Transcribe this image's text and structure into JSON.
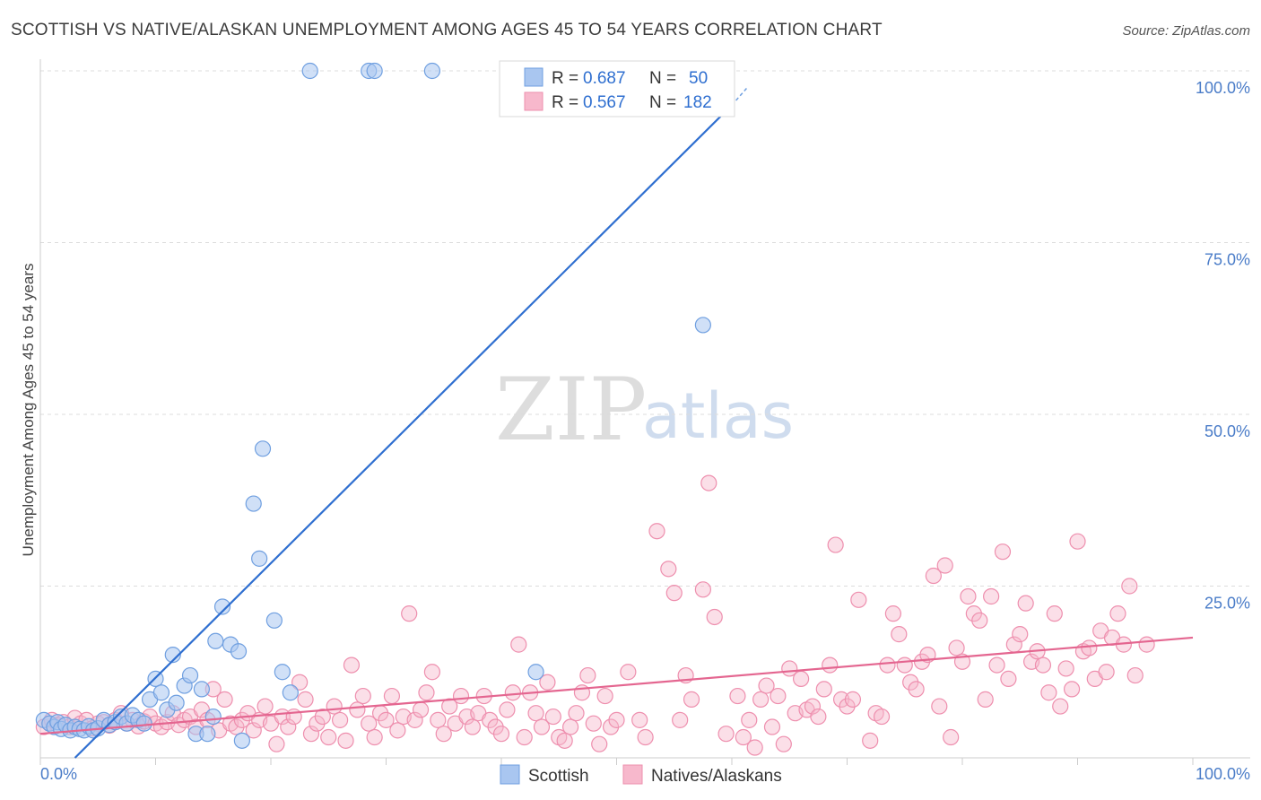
{
  "title": "SCOTTISH VS NATIVE/ALASKAN UNEMPLOYMENT AMONG AGES 45 TO 54 YEARS CORRELATION CHART",
  "source": "Source: ZipAtlas.com",
  "watermark": {
    "zip": "ZIP",
    "atlas": "atlas"
  },
  "colors": {
    "scottish": "#a9c6f0",
    "scottish_stroke": "#6f9fe0",
    "scottish_line": "#2f6fd0",
    "natives": "#f7b8cc",
    "natives_stroke": "#ee8fae",
    "natives_line": "#e46690",
    "grid": "#dcdcdc",
    "axis_text": "#4a7cc8"
  },
  "legend_top": {
    "rows": [
      {
        "r_label": "R = ",
        "r_value": "0.687",
        "n_label": "N = ",
        "n_value": "50"
      },
      {
        "r_label": "R = ",
        "r_value": "0.567",
        "n_label": "N = ",
        "n_value": "182"
      }
    ]
  },
  "legend_bottom": {
    "items": [
      "Scottish",
      "Natives/Alaskans"
    ]
  },
  "chart_data": {
    "type": "scatter",
    "xlabel": "",
    "ylabel": "Unemployment Among Ages 45 to 54 years",
    "xlim": [
      0,
      100
    ],
    "ylim": [
      0,
      100
    ],
    "x_tick_labels": [
      "0.0%",
      "100.0%"
    ],
    "y_ticks": [
      25,
      50,
      75,
      100
    ],
    "y_tick_labels": [
      "25.0%",
      "50.0%",
      "75.0%",
      "100.0%"
    ],
    "grid": true,
    "legend_position": "top-center",
    "series": [
      {
        "name": "Scottish",
        "r": 0.687,
        "n": 50,
        "trend": {
          "x0": 3,
          "y0": 0,
          "x1": 60,
          "y1": 95
        },
        "trend_ext": {
          "x0": 60,
          "y0": 95,
          "x1": 61.3,
          "y1": 97.5
        },
        "points": [
          [
            0.3,
            5.5
          ],
          [
            0.8,
            5.0
          ],
          [
            1.2,
            4.5
          ],
          [
            1.5,
            5.2
          ],
          [
            1.8,
            4.2
          ],
          [
            2.2,
            4.8
          ],
          [
            2.6,
            4.0
          ],
          [
            3.0,
            4.5
          ],
          [
            3.4,
            4.2
          ],
          [
            3.8,
            4.0
          ],
          [
            4.2,
            4.6
          ],
          [
            4.6,
            4.0
          ],
          [
            5.0,
            4.3
          ],
          [
            5.5,
            5.5
          ],
          [
            6.0,
            4.8
          ],
          [
            6.5,
            5.2
          ],
          [
            7.0,
            6.0
          ],
          [
            7.5,
            5.0
          ],
          [
            8.0,
            6.2
          ],
          [
            8.5,
            5.5
          ],
          [
            9.0,
            5.0
          ],
          [
            9.5,
            8.5
          ],
          [
            10.0,
            11.5
          ],
          [
            10.5,
            9.5
          ],
          [
            11.0,
            7.0
          ],
          [
            11.5,
            15.0
          ],
          [
            11.8,
            8.0
          ],
          [
            12.5,
            10.5
          ],
          [
            13.0,
            12.0
          ],
          [
            13.5,
            3.5
          ],
          [
            14.0,
            10.0
          ],
          [
            14.5,
            3.5
          ],
          [
            15.0,
            6.0
          ],
          [
            15.2,
            17.0
          ],
          [
            15.8,
            22.0
          ],
          [
            16.5,
            16.5
          ],
          [
            17.2,
            15.5
          ],
          [
            17.5,
            2.5
          ],
          [
            18.5,
            37.0
          ],
          [
            19.0,
            29.0
          ],
          [
            19.3,
            45.0
          ],
          [
            20.3,
            20.0
          ],
          [
            21.0,
            12.5
          ],
          [
            21.7,
            9.5
          ],
          [
            23.4,
            100
          ],
          [
            28.5,
            100
          ],
          [
            29.0,
            100
          ],
          [
            34.0,
            100
          ],
          [
            43.0,
            12.5
          ],
          [
            57.5,
            63.0
          ]
        ]
      },
      {
        "name": "Natives/Alaskans",
        "r": 0.567,
        "n": 182,
        "trend": {
          "x0": 0,
          "y0": 3.5,
          "x1": 100,
          "y1": 17.5
        },
        "points": [
          [
            0.3,
            4.5
          ],
          [
            0.8,
            5.0
          ],
          [
            1.0,
            5.5
          ],
          [
            1.5,
            4.8
          ],
          [
            2.0,
            5.2
          ],
          [
            2.5,
            4.5
          ],
          [
            3.0,
            5.8
          ],
          [
            3.5,
            5.0
          ],
          [
            4.0,
            5.5
          ],
          [
            4.5,
            4.3
          ],
          [
            5.0,
            5.0
          ],
          [
            5.5,
            5.2
          ],
          [
            6.0,
            4.7
          ],
          [
            6.5,
            5.5
          ],
          [
            7.0,
            6.5
          ],
          [
            7.5,
            5.0
          ],
          [
            8.0,
            5.5
          ],
          [
            8.5,
            4.6
          ],
          [
            9.0,
            5.3
          ],
          [
            9.5,
            6.0
          ],
          [
            10.0,
            5.0
          ],
          [
            10.5,
            4.5
          ],
          [
            11.0,
            5.2
          ],
          [
            11.5,
            6.5
          ],
          [
            12.0,
            4.8
          ],
          [
            12.5,
            5.5
          ],
          [
            13.0,
            6.0
          ],
          [
            13.5,
            4.5
          ],
          [
            14.0,
            7.0
          ],
          [
            14.5,
            5.5
          ],
          [
            15.0,
            10.0
          ],
          [
            15.5,
            4.0
          ],
          [
            16.0,
            8.5
          ],
          [
            16.5,
            5.0
          ],
          [
            17.0,
            4.5
          ],
          [
            17.5,
            5.5
          ],
          [
            18.0,
            6.5
          ],
          [
            18.5,
            4.0
          ],
          [
            19.0,
            5.5
          ],
          [
            19.5,
            7.5
          ],
          [
            20.0,
            5.0
          ],
          [
            20.5,
            2.0
          ],
          [
            21.0,
            6.0
          ],
          [
            21.5,
            4.5
          ],
          [
            22.0,
            6.0
          ],
          [
            22.5,
            11.0
          ],
          [
            23.0,
            8.5
          ],
          [
            23.5,
            3.5
          ],
          [
            24.0,
            5.0
          ],
          [
            24.5,
            6.0
          ],
          [
            25.0,
            3.0
          ],
          [
            25.5,
            7.5
          ],
          [
            26.0,
            5.5
          ],
          [
            26.5,
            2.5
          ],
          [
            27.0,
            13.5
          ],
          [
            27.5,
            7.0
          ],
          [
            28.0,
            9.0
          ],
          [
            28.5,
            5.0
          ],
          [
            29.0,
            3.0
          ],
          [
            29.5,
            6.5
          ],
          [
            30.0,
            5.5
          ],
          [
            30.5,
            9.0
          ],
          [
            31.0,
            4.0
          ],
          [
            31.5,
            6.0
          ],
          [
            32.0,
            21.0
          ],
          [
            32.5,
            5.5
          ],
          [
            33.0,
            7.0
          ],
          [
            33.5,
            9.5
          ],
          [
            34.0,
            12.5
          ],
          [
            34.5,
            5.5
          ],
          [
            35.0,
            3.5
          ],
          [
            35.5,
            7.5
          ],
          [
            36.0,
            5.0
          ],
          [
            36.5,
            9.0
          ],
          [
            37.0,
            6.0
          ],
          [
            37.5,
            4.5
          ],
          [
            38.0,
            6.5
          ],
          [
            38.5,
            9.0
          ],
          [
            39.0,
            5.5
          ],
          [
            39.5,
            4.5
          ],
          [
            40.0,
            3.5
          ],
          [
            40.5,
            7.0
          ],
          [
            41.0,
            9.5
          ],
          [
            41.5,
            16.5
          ],
          [
            42.0,
            3.0
          ],
          [
            42.5,
            9.5
          ],
          [
            43.0,
            6.5
          ],
          [
            43.5,
            4.5
          ],
          [
            44.0,
            11.0
          ],
          [
            44.5,
            6.0
          ],
          [
            45.0,
            3.0
          ],
          [
            45.5,
            2.5
          ],
          [
            46.0,
            4.5
          ],
          [
            46.5,
            6.5
          ],
          [
            47.0,
            9.5
          ],
          [
            47.5,
            12.0
          ],
          [
            48.0,
            5.0
          ],
          [
            48.5,
            2.0
          ],
          [
            49.0,
            9.0
          ],
          [
            49.5,
            4.5
          ],
          [
            50.0,
            5.5
          ],
          [
            51.0,
            12.5
          ],
          [
            52.0,
            5.5
          ],
          [
            52.5,
            3.0
          ],
          [
            53.5,
            33.0
          ],
          [
            54.5,
            27.5
          ],
          [
            55.0,
            24.0
          ],
          [
            55.5,
            5.5
          ],
          [
            56.0,
            12.0
          ],
          [
            56.5,
            8.5
          ],
          [
            57.5,
            24.5
          ],
          [
            58.0,
            40.0
          ],
          [
            58.5,
            20.5
          ],
          [
            59.5,
            3.5
          ],
          [
            60.5,
            9.0
          ],
          [
            61.0,
            3.0
          ],
          [
            61.5,
            5.5
          ],
          [
            62.0,
            1.5
          ],
          [
            62.5,
            8.5
          ],
          [
            63.0,
            10.5
          ],
          [
            63.5,
            4.5
          ],
          [
            64.0,
            9.0
          ],
          [
            64.5,
            2.0
          ],
          [
            65.0,
            13.0
          ],
          [
            65.5,
            6.5
          ],
          [
            66.0,
            11.5
          ],
          [
            66.5,
            7.0
          ],
          [
            67.0,
            7.5
          ],
          [
            67.5,
            6.0
          ],
          [
            68.0,
            10.0
          ],
          [
            68.5,
            13.5
          ],
          [
            69.0,
            31.0
          ],
          [
            69.5,
            8.5
          ],
          [
            70.0,
            7.5
          ],
          [
            70.5,
            8.5
          ],
          [
            71.0,
            23.0
          ],
          [
            72.0,
            2.5
          ],
          [
            72.5,
            6.5
          ],
          [
            73.0,
            6.0
          ],
          [
            73.5,
            13.5
          ],
          [
            74.0,
            21.0
          ],
          [
            74.5,
            18.0
          ],
          [
            75.0,
            13.5
          ],
          [
            75.5,
            11.0
          ],
          [
            76.0,
            10.0
          ],
          [
            76.5,
            14.0
          ],
          [
            77.0,
            15.0
          ],
          [
            77.5,
            26.5
          ],
          [
            78.0,
            7.5
          ],
          [
            78.5,
            28.0
          ],
          [
            79.0,
            3.0
          ],
          [
            79.5,
            16.0
          ],
          [
            80.0,
            14.0
          ],
          [
            80.5,
            23.5
          ],
          [
            81.0,
            21.0
          ],
          [
            81.5,
            20.0
          ],
          [
            82.0,
            8.5
          ],
          [
            82.5,
            23.5
          ],
          [
            83.0,
            13.5
          ],
          [
            83.5,
            30.0
          ],
          [
            84.0,
            11.5
          ],
          [
            84.5,
            16.5
          ],
          [
            85.0,
            18.0
          ],
          [
            85.5,
            22.5
          ],
          [
            86.0,
            14.0
          ],
          [
            86.5,
            15.5
          ],
          [
            87.0,
            13.5
          ],
          [
            87.5,
            9.5
          ],
          [
            88.0,
            21.0
          ],
          [
            88.5,
            7.5
          ],
          [
            89.0,
            13.0
          ],
          [
            89.5,
            10.0
          ],
          [
            90.0,
            31.5
          ],
          [
            90.5,
            15.5
          ],
          [
            91.0,
            16.0
          ],
          [
            91.5,
            11.5
          ],
          [
            92.0,
            18.5
          ],
          [
            92.5,
            12.5
          ],
          [
            93.0,
            17.5
          ],
          [
            93.5,
            21.0
          ],
          [
            94.0,
            16.5
          ],
          [
            94.5,
            25.0
          ],
          [
            95.0,
            12.0
          ],
          [
            96.0,
            16.5
          ]
        ]
      }
    ]
  }
}
